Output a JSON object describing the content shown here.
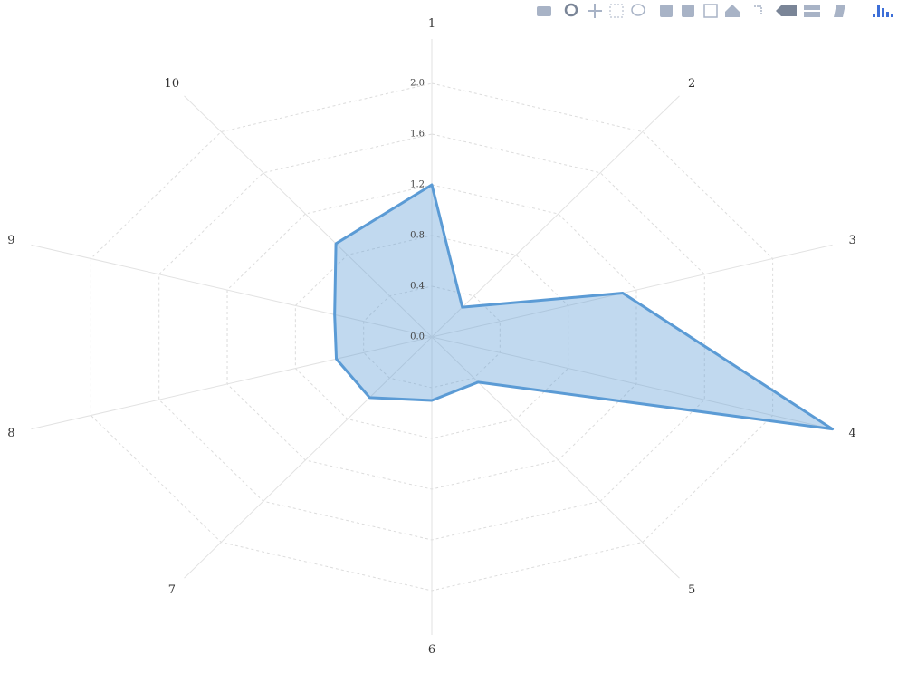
{
  "chart_data": {
    "type": "radar",
    "categories": [
      "1",
      "2",
      "3",
      "4",
      "5",
      "6",
      "7",
      "8",
      "9",
      "10"
    ],
    "series": [
      {
        "color": "#5b9bd5",
        "values": [
          1.2,
          0.29,
          1.12,
          2.35,
          0.44,
          0.5,
          0.59,
          0.56,
          0.57,
          0.91
        ]
      }
    ],
    "rlim": [
      0,
      2.35
    ],
    "rticks": [
      {
        "value": 0,
        "label": "0.0"
      },
      0.4,
      0.8,
      1.2,
      1.6,
      {
        "value": 2,
        "label": "2.0"
      }
    ],
    "grid": true
  }
}
